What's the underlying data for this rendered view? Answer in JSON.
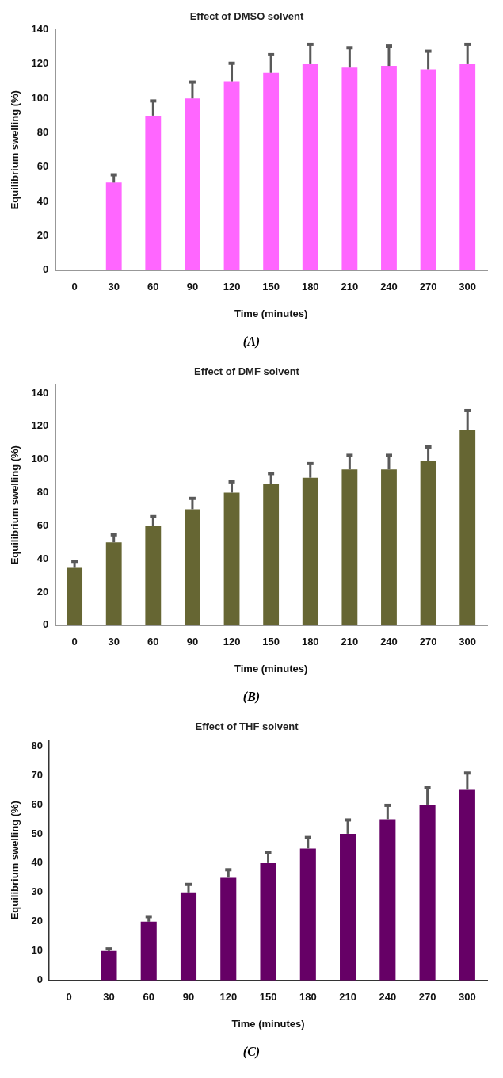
{
  "chart_data": [
    {
      "type": "bar",
      "title": "Effect of DMSO solvent",
      "xlabel": "Time (minutes)",
      "ylabel": "Equilibrium swelling (%)",
      "annotations": [
        "(A)"
      ],
      "categories": [
        "0",
        "30",
        "60",
        "90",
        "120",
        "150",
        "180",
        "210",
        "240",
        "270",
        "300"
      ],
      "series": [
        {
          "color": "#ff66ff",
          "values": [
            0,
            51,
            90,
            100,
            110,
            115,
            120,
            118,
            119,
            117,
            120
          ],
          "errors": [
            null,
            [
              51,
              56
            ],
            [
              90,
              99
            ],
            [
              100,
              110
            ],
            [
              110,
              121
            ],
            [
              115,
              126
            ],
            [
              120,
              132
            ],
            [
              118,
              130
            ],
            [
              119,
              131
            ],
            [
              117,
              128
            ],
            [
              120,
              132
            ]
          ]
        }
      ],
      "ylim": [
        0,
        140
      ],
      "yticks": [
        0,
        20,
        40,
        60,
        80,
        100,
        120,
        140
      ],
      "grid": false,
      "legend": false
    },
    {
      "type": "bar",
      "title": "Effect of DMF solvent",
      "xlabel": "Time (minutes)",
      "ylabel": "Equilibrium swelling (%)",
      "annotations": [
        "(B)"
      ],
      "categories": [
        "0",
        "30",
        "60",
        "90",
        "120",
        "150",
        "180",
        "210",
        "240",
        "270",
        "300"
      ],
      "series": [
        {
          "color": "#666633",
          "values": [
            35,
            50,
            60,
            70,
            80,
            85,
            89,
            94,
            94,
            99,
            118
          ],
          "errors": [
            [
              35,
              39
            ],
            [
              50,
              55
            ],
            [
              60,
              66
            ],
            [
              70,
              77
            ],
            [
              80,
              87
            ],
            [
              85,
              92
            ],
            [
              89,
              98
            ],
            [
              94,
              103
            ],
            [
              94,
              103
            ],
            [
              99,
              108
            ],
            [
              118,
              130
            ]
          ]
        }
      ],
      "ylim": [
        0,
        145
      ],
      "yticks": [
        0,
        20,
        40,
        60,
        80,
        100,
        120,
        140
      ],
      "grid": false,
      "legend": false
    },
    {
      "type": "bar",
      "title": "Effect of THF solvent",
      "xlabel": "Time (minutes)",
      "ylabel": "Equilibrium swelling (%)",
      "annotations": [
        "(C)"
      ],
      "categories": [
        "0",
        "30",
        "60",
        "90",
        "120",
        "150",
        "180",
        "210",
        "240",
        "270",
        "300"
      ],
      "series": [
        {
          "color": "#660066",
          "values": [
            0,
            10,
            20,
            30,
            35,
            40,
            45,
            50,
            55,
            60,
            65
          ],
          "errors": [
            null,
            [
              10,
              11
            ],
            [
              20,
              22
            ],
            [
              30,
              33
            ],
            [
              35,
              38
            ],
            [
              40,
              44
            ],
            [
              45,
              49
            ],
            [
              50,
              55
            ],
            [
              55,
              60
            ],
            [
              60,
              66
            ],
            [
              65,
              71
            ]
          ]
        }
      ],
      "ylim": [
        0,
        82
      ],
      "yticks": [
        0,
        10,
        20,
        30,
        40,
        50,
        60,
        70,
        80
      ],
      "grid": false,
      "legend": false
    }
  ]
}
